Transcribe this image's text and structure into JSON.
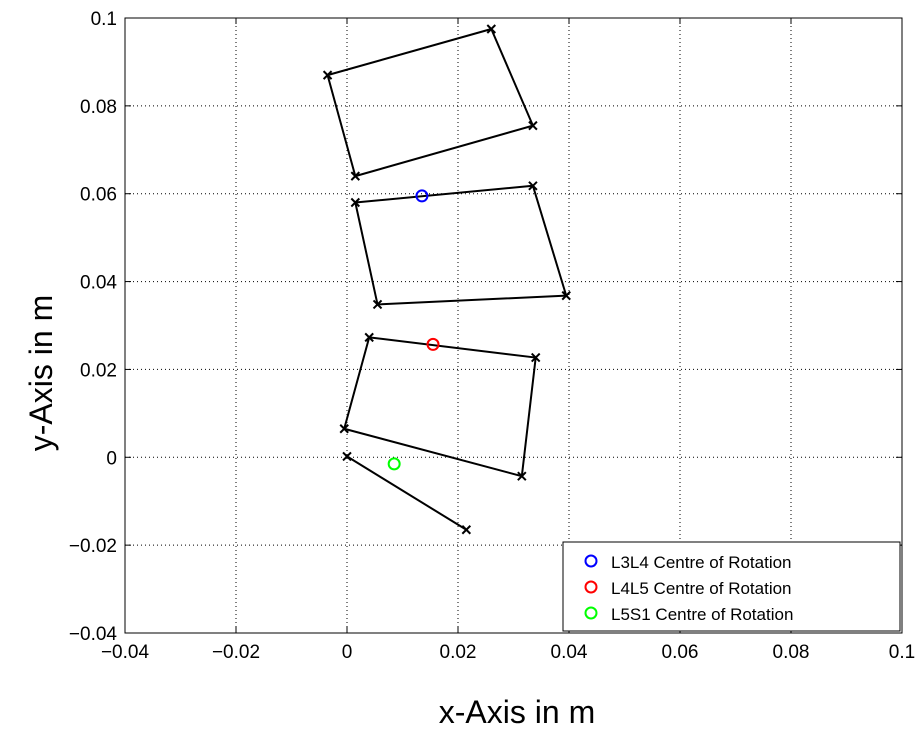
{
  "chart_data": {
    "type": "scatter",
    "title": "",
    "xlabel": "x-Axis in m",
    "ylabel": "y-Axis in m",
    "xlim": [
      -0.04,
      0.1
    ],
    "ylim": [
      -0.04,
      0.1
    ],
    "xticks": [
      -0.04,
      -0.02,
      0,
      0.02,
      0.04,
      0.06,
      0.08,
      0.1
    ],
    "yticks": [
      -0.04,
      -0.02,
      0,
      0.02,
      0.04,
      0.06,
      0.08,
      0.1
    ],
    "xtick_labels": [
      "−0.04",
      "−0.02",
      "0",
      "0.02",
      "0.04",
      "0.06",
      "0.08",
      "0.1"
    ],
    "ytick_labels": [
      "−0.04",
      "−0.02",
      "0",
      "0.02",
      "0.04",
      "0.06",
      "0.08",
      "0.1"
    ],
    "grid": true,
    "grid_style": "dotted",
    "legend_position": "bottom-right",
    "line_color": "#000000",
    "shapes": [
      {
        "points": [
          [
            -0.0035,
            0.087
          ],
          [
            0.026,
            0.0975
          ],
          [
            0.0335,
            0.0755
          ],
          [
            0.0015,
            0.064
          ]
        ],
        "closed": true
      },
      {
        "points": [
          [
            0.0015,
            0.058
          ],
          [
            0.0335,
            0.0618
          ],
          [
            0.0395,
            0.0368
          ],
          [
            0.0055,
            0.0348
          ]
        ],
        "closed": true
      },
      {
        "points": [
          [
            0.004,
            0.0273
          ],
          [
            0.034,
            0.0227
          ],
          [
            0.0315,
            -0.0043
          ],
          [
            -0.0005,
            0.0065
          ]
        ],
        "closed": true
      },
      {
        "points": [
          [
            0.0,
            0.0002
          ],
          [
            0.0215,
            -0.0165
          ]
        ],
        "closed": false
      }
    ],
    "series": [
      {
        "name": "L3L4 Centre of Rotation",
        "color": "#0000ff",
        "x": [
          0.0135
        ],
        "y": [
          0.0595
        ]
      },
      {
        "name": "L4L5 Centre of Rotation",
        "color": "#ff0000",
        "x": [
          0.0155
        ],
        "y": [
          0.0257
        ]
      },
      {
        "name": "L5S1 Centre of Rotation",
        "color": "#00ff00",
        "x": [
          0.0085
        ],
        "y": [
          -0.0015
        ]
      }
    ]
  }
}
